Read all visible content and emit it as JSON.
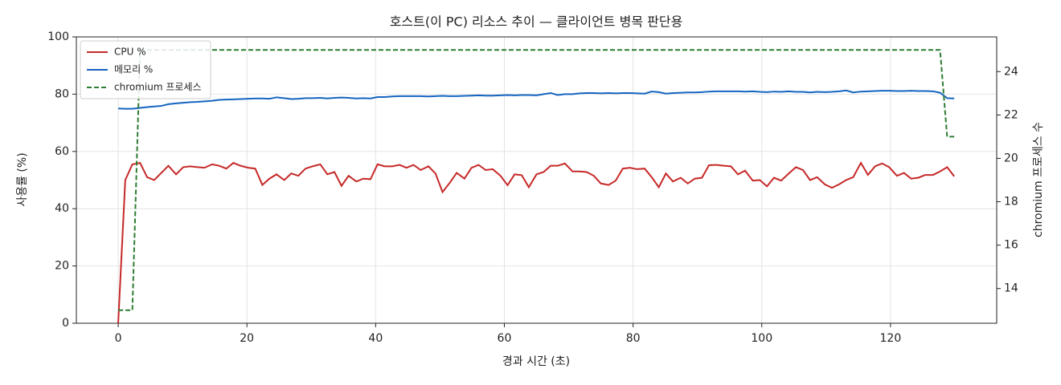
{
  "chart_data": {
    "type": "line",
    "title": "호스트(이 PC) 리소스 추이 — 클라이언트 병목 판단용",
    "x_label": "경과 시간 (초)",
    "y_label": "사용률 (%)",
    "y2_label": "chromium 프로세스 수",
    "x": [
      0,
      1.1,
      2.2,
      3.4,
      4.5,
      5.6,
      6.7,
      7.8,
      9.0,
      10.1,
      11.2,
      12.3,
      13.4,
      14.6,
      15.7,
      16.8,
      17.9,
      19.0,
      20.2,
      21.3,
      22.4,
      23.5,
      24.6,
      25.8,
      26.9,
      28.0,
      29.1,
      30.2,
      31.4,
      32.5,
      33.6,
      34.7,
      35.8,
      37.0,
      38.1,
      39.2,
      40.3,
      41.4,
      42.6,
      43.7,
      44.8,
      45.9,
      47.0,
      48.2,
      49.3,
      50.4,
      51.5,
      52.6,
      53.8,
      54.9,
      56.0,
      57.1,
      58.2,
      59.4,
      60.5,
      61.6,
      62.7,
      63.8,
      65.0,
      66.1,
      67.2,
      68.3,
      69.4,
      70.6,
      71.7,
      72.8,
      73.9,
      75.0,
      76.2,
      77.3,
      78.4,
      79.5,
      80.6,
      81.8,
      82.9,
      84.0,
      85.1,
      86.2,
      87.4,
      88.5,
      89.6,
      90.7,
      91.8,
      93.0,
      94.1,
      95.2,
      96.3,
      97.4,
      98.6,
      99.7,
      100.8,
      101.9,
      103.0,
      104.2,
      105.3,
      106.4,
      107.5,
      108.6,
      109.8,
      110.9,
      112.0,
      113.1,
      114.2,
      115.4,
      116.5,
      117.6,
      118.7,
      119.8,
      121.0,
      122.1,
      123.2,
      124.3,
      125.4,
      126.6,
      127.7,
      128.8,
      129.9
    ],
    "series": [
      {
        "name": "CPU %",
        "color": "#c62828",
        "values": [
          0,
          50,
          55.5,
          56,
          51,
          50,
          52.5,
          55,
          52,
          54.5,
          54.8,
          54.5,
          54.3,
          55.5,
          55,
          54,
          56,
          55,
          54.3,
          54,
          48.3,
          50.5,
          52,
          50,
          52.3,
          51.5,
          54,
          54.8,
          55.5,
          52,
          52.8,
          48,
          51.5,
          49.5,
          50.5,
          50.3,
          55.5,
          54.8,
          54.8,
          55.3,
          54.3,
          55.3,
          53.5,
          54.8,
          52.3,
          45.8,
          49,
          52.5,
          50.5,
          54.3,
          55.3,
          53.5,
          53.8,
          51.5,
          48.2,
          52,
          51.7,
          47.5,
          52,
          52.8,
          55,
          55,
          55.8,
          53,
          53,
          52.8,
          51.5,
          48.8,
          48.3,
          49.8,
          54,
          54.3,
          53.8,
          54,
          51,
          47.5,
          52.3,
          49.5,
          50.8,
          48.8,
          50.5,
          50.8,
          55.2,
          55.3,
          55,
          54.8,
          52,
          53.3,
          49.8,
          50,
          47.8,
          50.8,
          49.8,
          52.3,
          54.5,
          53.5,
          50,
          51,
          48.5,
          47.3,
          48.5,
          50,
          51,
          56,
          51.8,
          54.8,
          55.8,
          54.5,
          51.5,
          52.5,
          50.5,
          50.8,
          51.8,
          51.8,
          53,
          54.5,
          51.3
        ]
      },
      {
        "name": "메모리 %",
        "color": "#1565c0",
        "values": [
          75,
          74.9,
          74.9,
          75.2,
          75.5,
          75.7,
          75.9,
          76.5,
          76.8,
          77,
          77.2,
          77.3,
          77.5,
          77.7,
          78,
          78.1,
          78.2,
          78.3,
          78.4,
          78.5,
          78.5,
          78.4,
          78.9,
          78.6,
          78.3,
          78.4,
          78.6,
          78.6,
          78.7,
          78.5,
          78.7,
          78.8,
          78.7,
          78.5,
          78.6,
          78.5,
          79,
          79,
          79.2,
          79.3,
          79.3,
          79.3,
          79.3,
          79.2,
          79.3,
          79.4,
          79.3,
          79.3,
          79.4,
          79.5,
          79.6,
          79.5,
          79.5,
          79.6,
          79.7,
          79.6,
          79.7,
          79.7,
          79.6,
          80,
          80.4,
          79.7,
          80,
          80,
          80.3,
          80.4,
          80.4,
          80.3,
          80.4,
          80.3,
          80.4,
          80.4,
          80.3,
          80.2,
          80.9,
          80.7,
          80.2,
          80.4,
          80.5,
          80.6,
          80.6,
          80.7,
          80.9,
          81,
          81,
          81,
          81,
          80.9,
          81,
          80.8,
          80.7,
          80.9,
          80.8,
          81,
          80.8,
          80.8,
          80.6,
          80.8,
          80.7,
          80.8,
          81,
          81.3,
          80.6,
          80.9,
          81,
          81.1,
          81.2,
          81.2,
          81.1,
          81.1,
          81.2,
          81.1,
          81.1,
          81,
          80.5,
          78.6,
          78.5
        ]
      },
      {
        "name": "chromium 프로세스",
        "color": "#2e7d32",
        "dashed": true,
        "axis": "y2",
        "values": [
          13,
          13,
          13,
          25,
          25,
          25,
          25,
          25,
          25,
          25,
          25,
          25,
          25,
          25,
          25,
          25,
          25,
          25,
          25,
          25,
          25,
          25,
          25,
          25,
          25,
          25,
          25,
          25,
          25,
          25,
          25,
          25,
          25,
          25,
          25,
          25,
          25,
          25,
          25,
          25,
          25,
          25,
          25,
          25,
          25,
          25,
          25,
          25,
          25,
          25,
          25,
          25,
          25,
          25,
          25,
          25,
          25,
          25,
          25,
          25,
          25,
          25,
          25,
          25,
          25,
          25,
          25,
          25,
          25,
          25,
          25,
          25,
          25,
          25,
          25,
          25,
          25,
          25,
          25,
          25,
          25,
          25,
          25,
          25,
          25,
          25,
          25,
          25,
          25,
          25,
          25,
          25,
          25,
          25,
          25,
          25,
          25,
          25,
          25,
          25,
          25,
          25,
          25,
          25,
          25,
          25,
          25,
          25,
          25,
          25,
          25,
          25,
          25,
          25,
          25,
          21,
          21
        ]
      }
    ],
    "xlim": [
      -6.5,
      136.5
    ],
    "xticks": [
      0,
      20,
      40,
      60,
      80,
      100,
      120
    ],
    "ylim": [
      0,
      100
    ],
    "yticks": [
      0,
      20,
      40,
      60,
      80,
      100
    ],
    "y2lim": [
      12.4,
      25.6
    ],
    "y2ticks": [
      14,
      16,
      18,
      20,
      22,
      24
    ],
    "grid": true,
    "legend": "upper-left"
  }
}
